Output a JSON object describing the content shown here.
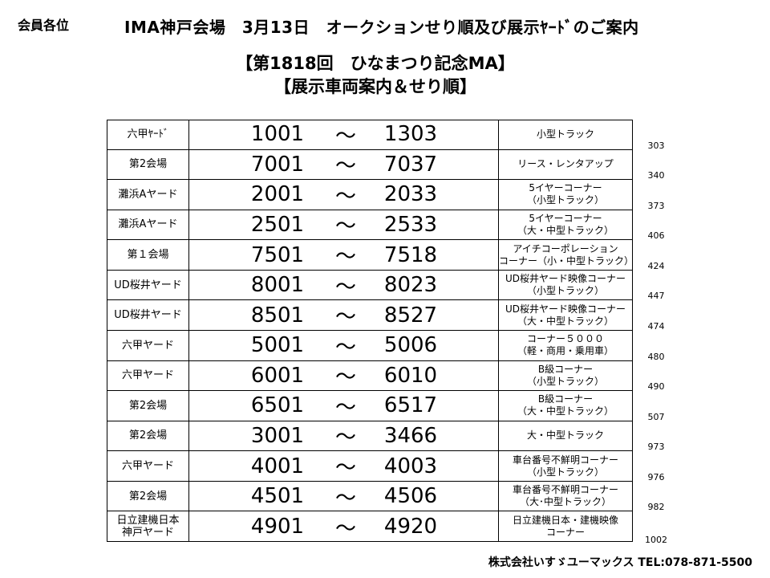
{
  "header": {
    "salutation": "会員各位",
    "title": "IMA神戸会場　3月13日　オークションせり順及び展示ﾔｰﾄﾞのご案内",
    "subtitle_1": "【第1818回　ひなまつり記念MA】",
    "subtitle_2": "【展示車両案内＆せり順】"
  },
  "table": {
    "rows": [
      {
        "location": [
          "六甲ﾔｰﾄﾞ"
        ],
        "from": "1001",
        "sep": "～",
        "to": "1303",
        "category": [
          "小型トラック"
        ],
        "count": "303"
      },
      {
        "location": [
          "第2会場"
        ],
        "from": "7001",
        "sep": "～",
        "to": "7037",
        "category": [
          "リース・レンタアップ"
        ],
        "count": "340"
      },
      {
        "location": [
          "灘浜Aヤード"
        ],
        "from": "2001",
        "sep": "～",
        "to": "2033",
        "category": [
          "5イヤーコーナー",
          "（小型トラック）"
        ],
        "count": "373"
      },
      {
        "location": [
          "灘浜Aヤード"
        ],
        "from": "2501",
        "sep": "～",
        "to": "2533",
        "category": [
          "5イヤーコーナー",
          "（大・中型トラック）"
        ],
        "count": "406"
      },
      {
        "location": [
          "第１会場"
        ],
        "from": "7501",
        "sep": "～",
        "to": "7518",
        "category": [
          "アイチコーポレーション",
          "コーナー（小・中型トラック）"
        ],
        "count": "424"
      },
      {
        "location": [
          "UD桜井ヤード"
        ],
        "from": "8001",
        "sep": "～",
        "to": "8023",
        "category": [
          "UD桜井ヤード映像コーナー",
          "（小型トラック）"
        ],
        "count": "447"
      },
      {
        "location": [
          "UD桜井ヤード"
        ],
        "from": "8501",
        "sep": "～",
        "to": "8527",
        "category": [
          "UD桜井ヤード映像コーナー",
          "（大・中型トラック）"
        ],
        "count": "474"
      },
      {
        "location": [
          "六甲ヤード"
        ],
        "from": "5001",
        "sep": "～",
        "to": "5006",
        "category": [
          "コーナー５０００",
          "（軽・商用・乗用車）"
        ],
        "count": "480"
      },
      {
        "location": [
          "六甲ヤード"
        ],
        "from": "6001",
        "sep": "～",
        "to": "6010",
        "category": [
          "B級コーナー",
          "（小型トラック）"
        ],
        "count": "490"
      },
      {
        "location": [
          "第2会場"
        ],
        "from": "6501",
        "sep": "～",
        "to": "6517",
        "category": [
          "B級コーナー",
          "（大・中型トラック）"
        ],
        "count": "507"
      },
      {
        "location": [
          "第2会場"
        ],
        "from": "3001",
        "sep": "～",
        "to": "3466",
        "category": [
          "大・中型トラック"
        ],
        "count": "973"
      },
      {
        "location": [
          "六甲ヤード"
        ],
        "from": "4001",
        "sep": "～",
        "to": "4003",
        "category": [
          "車台番号不鮮明コーナー",
          "（小型トラック）"
        ],
        "count": "976"
      },
      {
        "location": [
          "第2会場"
        ],
        "from": "4501",
        "sep": "～",
        "to": "4506",
        "category": [
          "車台番号不鮮明コーナー",
          "（大･中型トラック）"
        ],
        "count": "982"
      },
      {
        "location": [
          "日立建機日本",
          "神戸ヤード"
        ],
        "from": "4901",
        "sep": "～",
        "to": "4920",
        "category": [
          "日立建機日本・建機映像",
          "コーナー"
        ],
        "count": "1002"
      }
    ]
  },
  "footer": {
    "company": "株式会社いすゞユーマックス",
    "tel": "TEL:078-871-5500"
  }
}
